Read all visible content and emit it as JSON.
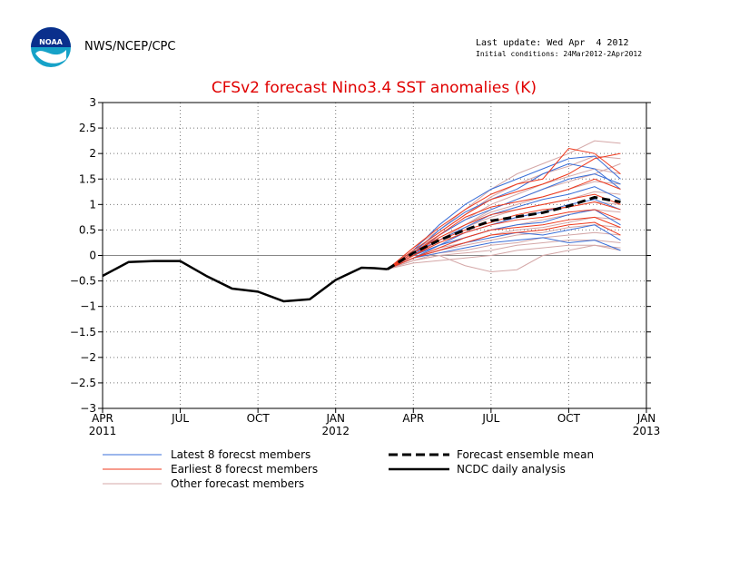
{
  "header": {
    "agency": "NWS/NCEP/CPC",
    "last_update": "Last update: Wed Apr  4 2012",
    "initial_conditions": "Initial conditions: 24Mar2012-2Apr2012",
    "logo_text": "NOAA"
  },
  "colors": {
    "latest": "#3a6fd8",
    "earliest": "#ef3a1e",
    "other": "#d4a7a7",
    "observed": "#000000",
    "title": "#e00000"
  },
  "chart_data": {
    "type": "line",
    "title": "CFSv2 forecast Nino3.4 SST anomalies (K)",
    "xlabel": "",
    "ylabel": "",
    "ylim": [
      -3,
      3
    ],
    "y_ticks": [
      -3,
      -2.5,
      -2,
      -1.5,
      -1,
      -0.5,
      0,
      0.5,
      1,
      1.5,
      2,
      2.5,
      3
    ],
    "y_tick_labels": [
      "−3",
      "−2.5",
      "−2",
      "−1.5",
      "−1",
      "−0.5",
      "0",
      "0.5",
      "1",
      "1.5",
      "2",
      "2.5",
      "3"
    ],
    "x_months_range": [
      0,
      21
    ],
    "x_ticks": [
      {
        "month": 0,
        "label": "APR",
        "year": "2011"
      },
      {
        "month": 3,
        "label": "JUL",
        "year": ""
      },
      {
        "month": 6,
        "label": "OCT",
        "year": ""
      },
      {
        "month": 9,
        "label": "JAN",
        "year": "2012"
      },
      {
        "month": 12,
        "label": "APR",
        "year": ""
      },
      {
        "month": 15,
        "label": "JUL",
        "year": ""
      },
      {
        "month": 18,
        "label": "OCT",
        "year": ""
      },
      {
        "month": 21,
        "label": "JAN",
        "year": "2013"
      }
    ],
    "grid": true,
    "zero_line": true,
    "legend_placement": "below",
    "observed": {
      "name": "NCDC daily analysis",
      "x": [
        0,
        1,
        2,
        3,
        4,
        5,
        6,
        7,
        8,
        9,
        10,
        10.5,
        11
      ],
      "y": [
        -0.4,
        -0.13,
        -0.11,
        -0.11,
        -0.4,
        -0.65,
        -0.71,
        -0.9,
        -0.86,
        -0.48,
        -0.24,
        -0.25,
        -0.27
      ]
    },
    "ensemble_mean": {
      "name": "Forecast ensemble mean",
      "x": [
        11,
        12,
        13,
        14,
        15,
        16,
        17,
        18,
        19,
        20
      ],
      "y": [
        -0.27,
        0.05,
        0.3,
        0.5,
        0.68,
        0.76,
        0.84,
        0.97,
        1.14,
        1.05
      ]
    },
    "member_x": [
      11,
      12,
      13,
      14,
      15,
      16,
      17,
      18,
      19,
      20
    ],
    "latest_members": [
      [
        -0.27,
        0.1,
        0.6,
        1.0,
        1.3,
        1.5,
        1.7,
        1.9,
        1.95,
        1.5
      ],
      [
        -0.27,
        0.05,
        0.5,
        0.85,
        1.1,
        1.3,
        1.6,
        1.8,
        1.7,
        1.3
      ],
      [
        -0.27,
        0.0,
        0.4,
        0.7,
        0.9,
        1.1,
        1.3,
        1.5,
        1.6,
        1.4
      ],
      [
        -0.27,
        0.05,
        0.3,
        0.55,
        0.8,
        0.95,
        1.1,
        1.2,
        1.35,
        1.1
      ],
      [
        -0.27,
        -0.05,
        0.2,
        0.45,
        0.6,
        0.75,
        0.85,
        1.0,
        1.1,
        0.9
      ],
      [
        -0.27,
        0.0,
        0.2,
        0.35,
        0.5,
        0.6,
        0.65,
        0.8,
        0.9,
        0.6
      ],
      [
        -0.27,
        -0.05,
        0.1,
        0.25,
        0.35,
        0.45,
        0.4,
        0.5,
        0.6,
        0.3
      ],
      [
        -0.27,
        -0.05,
        0.05,
        0.15,
        0.25,
        0.3,
        0.35,
        0.25,
        0.3,
        0.1
      ]
    ],
    "earliest_members": [
      [
        -0.27,
        0.15,
        0.55,
        0.9,
        1.2,
        1.4,
        1.5,
        2.1,
        2.0,
        1.6
      ],
      [
        -0.27,
        0.1,
        0.45,
        0.8,
        1.1,
        1.25,
        1.4,
        1.6,
        1.9,
        2.0
      ],
      [
        -0.27,
        0.05,
        0.4,
        0.75,
        0.95,
        1.05,
        1.15,
        1.3,
        1.5,
        1.3
      ],
      [
        -0.27,
        0.05,
        0.35,
        0.6,
        0.8,
        0.9,
        1.0,
        1.1,
        1.2,
        1.0
      ],
      [
        -0.27,
        0.0,
        0.3,
        0.5,
        0.65,
        0.8,
        0.9,
        0.95,
        1.05,
        0.9
      ],
      [
        -0.27,
        0.0,
        0.25,
        0.45,
        0.6,
        0.7,
        0.75,
        0.85,
        0.9,
        0.7
      ],
      [
        -0.27,
        -0.05,
        0.15,
        0.35,
        0.5,
        0.55,
        0.6,
        0.7,
        0.75,
        0.55
      ],
      [
        -0.27,
        -0.05,
        0.1,
        0.25,
        0.4,
        0.45,
        0.5,
        0.6,
        0.65,
        0.4
      ]
    ],
    "other_members": [
      [
        -0.27,
        0.15,
        0.5,
        0.9,
        1.3,
        1.6,
        1.8,
        2.0,
        2.25,
        2.2
      ],
      [
        -0.27,
        0.1,
        0.45,
        0.8,
        1.15,
        1.4,
        1.6,
        1.75,
        1.95,
        1.9
      ],
      [
        -0.27,
        0.1,
        0.4,
        0.7,
        1.0,
        1.2,
        1.4,
        1.55,
        1.7,
        1.6
      ],
      [
        -0.27,
        0.05,
        0.35,
        0.6,
        0.85,
        1.0,
        1.15,
        1.3,
        1.45,
        1.4
      ],
      [
        -0.27,
        0.05,
        0.3,
        0.55,
        0.75,
        0.9,
        1.0,
        1.1,
        1.25,
        1.2
      ],
      [
        -0.27,
        0.0,
        0.25,
        0.45,
        0.6,
        0.75,
        0.85,
        0.95,
        1.05,
        1.0
      ],
      [
        -0.27,
        0.0,
        0.2,
        0.35,
        0.5,
        0.6,
        0.7,
        0.8,
        0.9,
        0.85
      ],
      [
        -0.27,
        -0.05,
        0.15,
        0.25,
        0.4,
        0.5,
        0.55,
        0.65,
        0.75,
        0.7
      ],
      [
        -0.27,
        -0.05,
        0.1,
        0.2,
        0.3,
        0.4,
        0.45,
        0.55,
        0.6,
        0.55
      ],
      [
        -0.27,
        -0.1,
        0.05,
        0.1,
        0.2,
        0.25,
        0.35,
        0.4,
        0.45,
        0.4
      ],
      [
        -0.27,
        -0.1,
        0.0,
        0.05,
        0.1,
        0.2,
        0.25,
        0.3,
        0.3,
        0.25
      ],
      [
        -0.27,
        -0.15,
        -0.1,
        -0.05,
        0.0,
        0.1,
        0.15,
        0.2,
        0.2,
        0.15
      ],
      [
        -0.27,
        -0.1,
        0.0,
        -0.2,
        -0.32,
        -0.28,
        0.0,
        0.1,
        0.2,
        0.1
      ],
      [
        -0.27,
        0.0,
        0.3,
        0.6,
        0.9,
        1.1,
        1.3,
        1.45,
        1.6,
        1.8
      ]
    ],
    "legend": [
      {
        "key": "latest",
        "label": "Latest 8 forecst members",
        "style": "thin"
      },
      {
        "key": "earliest",
        "label": "Earliest 8 forecst members",
        "style": "thin"
      },
      {
        "key": "other",
        "label": "Other forecast members",
        "style": "thin"
      },
      {
        "key": "mean",
        "label": "Forecast ensemble mean",
        "style": "dashed"
      },
      {
        "key": "observed",
        "label": "NCDC daily analysis",
        "style": "solid"
      }
    ]
  }
}
